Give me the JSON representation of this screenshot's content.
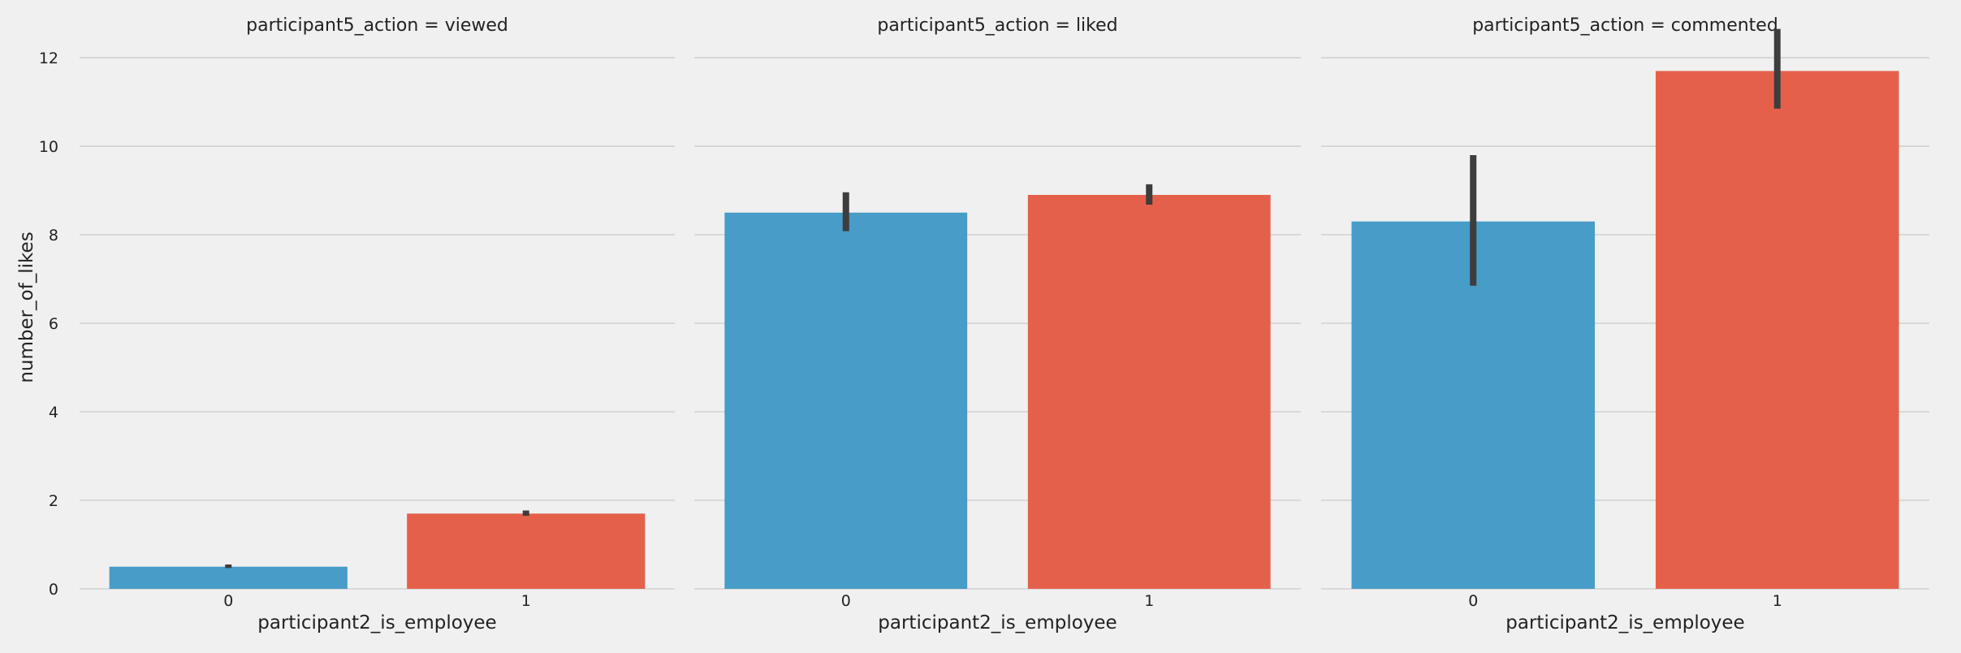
{
  "colors": {
    "background": "#f0f0f0",
    "grid": "#cbcbcb",
    "bar_0": "#479cc8",
    "bar_1": "#e5604a",
    "error_bar": "#3d3d3d"
  },
  "chart_data": {
    "type": "bar",
    "layout": "facet-columns",
    "ylabel": "number_of_likes",
    "xlabel": "participant2_is_employee",
    "ylim": [
      0,
      12.9
    ],
    "yticks": [
      0,
      2,
      4,
      6,
      8,
      10,
      12
    ],
    "grid": "horizontal",
    "categories": [
      "0",
      "1"
    ],
    "facets": [
      {
        "title": "participant5_action = viewed",
        "values": [
          0.5,
          1.7
        ],
        "error_low": [
          0.47,
          1.65
        ],
        "error_high": [
          0.55,
          1.77
        ]
      },
      {
        "title": "participant5_action = liked",
        "values": [
          8.5,
          8.9
        ],
        "error_low": [
          8.08,
          8.68
        ],
        "error_high": [
          8.96,
          9.14
        ]
      },
      {
        "title": "participant5_action = commented",
        "values": [
          8.3,
          11.7
        ],
        "error_low": [
          6.85,
          10.85
        ],
        "error_high": [
          9.8,
          12.65
        ]
      }
    ]
  }
}
